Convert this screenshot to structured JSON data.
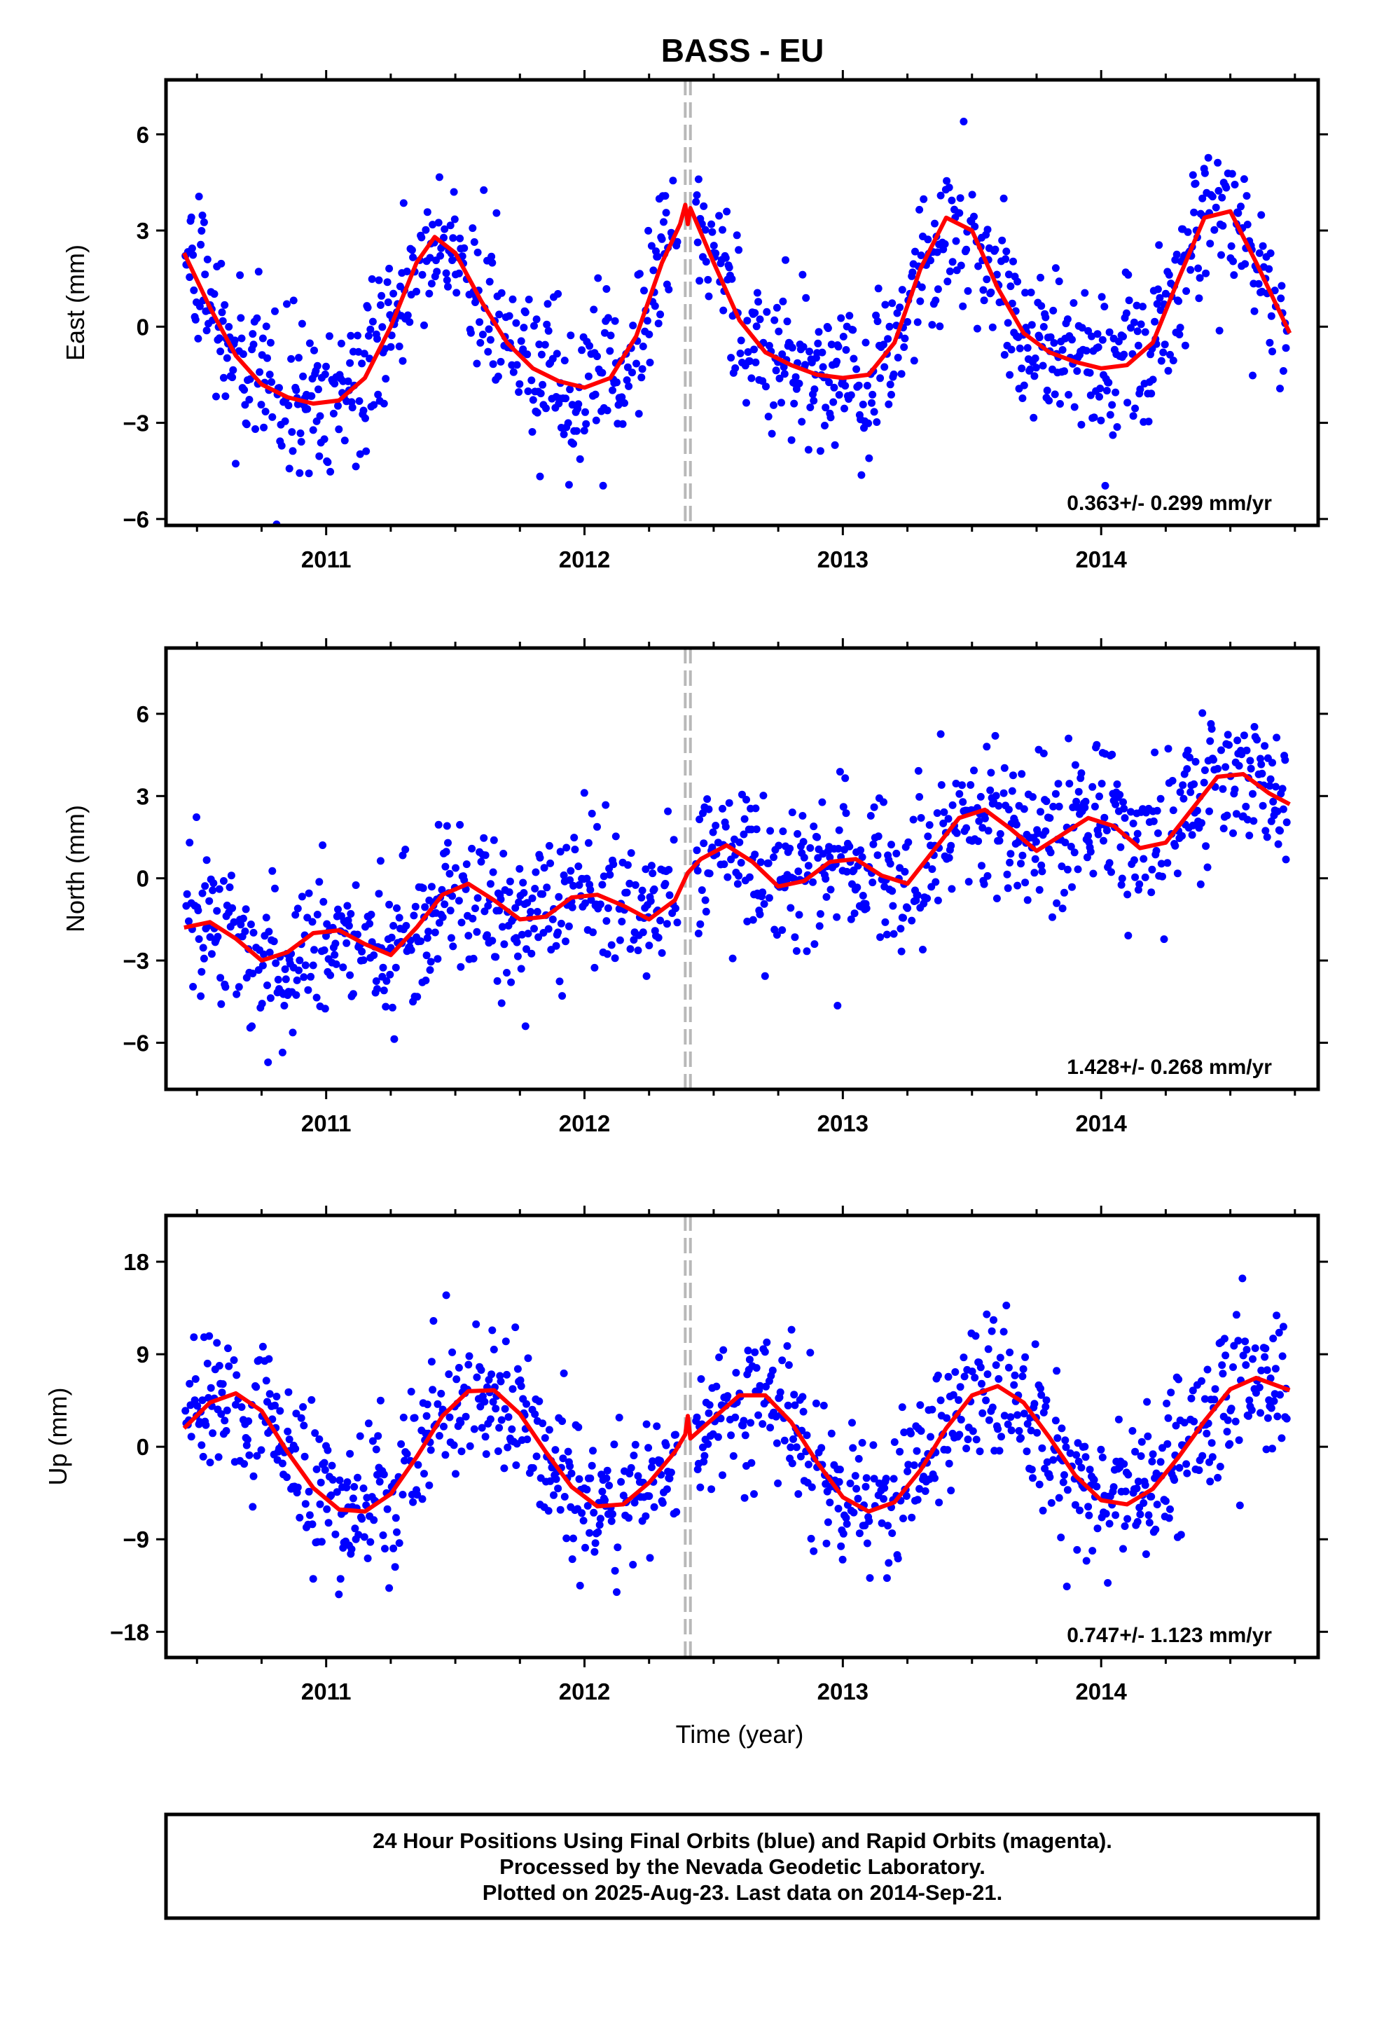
{
  "title": "BASS - EU",
  "xlabel": "Time (year)",
  "footer": {
    "line1": "24 Hour Positions Using Final Orbits (blue) and Rapid Orbits (magenta).",
    "line2": "Processed by the Nevada Geodetic Laboratory.",
    "line3": "Plotted on 2025-Aug-23. Last data on 2014-Sep-21."
  },
  "colors": {
    "points": "#0000ff",
    "model": "#ff0000",
    "event_line": "#b8b8b8",
    "frame": "#000000"
  },
  "chart_data": [
    {
      "type": "scatter",
      "ylabel": "East (mm)",
      "rate_text": "0.363+/- 0.299 mm/yr",
      "xlim": [
        2010.38,
        2014.84
      ],
      "ylim": [
        -6.2,
        7.7
      ],
      "yticks": [
        -6,
        -3,
        0,
        3,
        6
      ],
      "ytick_labels": [
        "−6",
        "−3",
        "0",
        "3",
        "6"
      ],
      "xticks": [
        2011,
        2012,
        2013,
        2014
      ],
      "xtick_labels": [
        "2011",
        "2012",
        "2013",
        "2014"
      ],
      "event_lines": [
        2012.39,
        2012.41
      ],
      "series": [
        {
          "kind": "model_curve",
          "x": [
            2010.45,
            2010.55,
            2010.65,
            2010.75,
            2010.85,
            2010.95,
            2011.05,
            2011.15,
            2011.25,
            2011.35,
            2011.42,
            2011.5,
            2011.6,
            2011.7,
            2011.8,
            2011.9,
            2012.0,
            2012.1,
            2012.2,
            2012.3,
            2012.37,
            2012.39,
            2012.4,
            2012.41,
            2012.5,
            2012.6,
            2012.7,
            2012.8,
            2012.9,
            2013.0,
            2013.1,
            2013.2,
            2013.3,
            2013.4,
            2013.5,
            2013.6,
            2013.7,
            2013.8,
            2013.9,
            2014.0,
            2014.1,
            2014.2,
            2014.3,
            2014.4,
            2014.5,
            2014.6,
            2014.73
          ],
          "y": [
            2.3,
            0.6,
            -0.9,
            -1.8,
            -2.2,
            -2.4,
            -2.3,
            -1.6,
            0.0,
            2.0,
            2.8,
            2.3,
            0.8,
            -0.5,
            -1.3,
            -1.7,
            -1.9,
            -1.6,
            -0.3,
            2.0,
            3.2,
            3.8,
            3.2,
            3.7,
            2.0,
            0.2,
            -0.8,
            -1.2,
            -1.5,
            -1.6,
            -1.5,
            -0.5,
            1.8,
            3.4,
            3.0,
            1.2,
            -0.2,
            -0.8,
            -1.1,
            -1.3,
            -1.2,
            -0.5,
            1.5,
            3.4,
            3.6,
            2.0,
            -0.2
          ]
        }
      ]
    },
    {
      "type": "scatter",
      "ylabel": "North (mm)",
      "rate_text": "1.428+/- 0.268 mm/yr",
      "xlim": [
        2010.38,
        2014.84
      ],
      "ylim": [
        -7.7,
        8.4
      ],
      "yticks": [
        -6,
        -3,
        0,
        3,
        6
      ],
      "ytick_labels": [
        "−6",
        "−3",
        "0",
        "3",
        "6"
      ],
      "xticks": [
        2011,
        2012,
        2013,
        2014
      ],
      "xtick_labels": [
        "2011",
        "2012",
        "2013",
        "2014"
      ],
      "event_lines": [
        2012.39,
        2012.41
      ],
      "series": [
        {
          "kind": "model_curve",
          "x": [
            2010.45,
            2010.55,
            2010.65,
            2010.75,
            2010.85,
            2010.95,
            2011.05,
            2011.15,
            2011.25,
            2011.35,
            2011.45,
            2011.55,
            2011.65,
            2011.75,
            2011.85,
            2011.95,
            2012.05,
            2012.15,
            2012.25,
            2012.35,
            2012.4,
            2012.45,
            2012.55,
            2012.65,
            2012.75,
            2012.85,
            2012.95,
            2013.05,
            2013.15,
            2013.25,
            2013.35,
            2013.45,
            2013.55,
            2013.65,
            2013.75,
            2013.85,
            2013.95,
            2014.05,
            2014.15,
            2014.25,
            2014.35,
            2014.45,
            2014.55,
            2014.65,
            2014.73
          ],
          "y": [
            -1.8,
            -1.6,
            -2.2,
            -3.0,
            -2.7,
            -2.0,
            -1.9,
            -2.4,
            -2.8,
            -1.8,
            -0.6,
            -0.2,
            -0.8,
            -1.5,
            -1.4,
            -0.7,
            -0.6,
            -1.0,
            -1.5,
            -0.8,
            0.2,
            0.7,
            1.2,
            0.6,
            -0.3,
            -0.1,
            0.6,
            0.7,
            0.1,
            -0.2,
            1.0,
            2.2,
            2.5,
            1.8,
            1.0,
            1.6,
            2.2,
            1.9,
            1.1,
            1.3,
            2.5,
            3.7,
            3.8,
            3.1,
            2.7
          ]
        }
      ]
    },
    {
      "type": "scatter",
      "ylabel": "Up (mm)",
      "rate_text": "0.747+/- 1.123 mm/yr",
      "xlim": [
        2010.38,
        2014.84
      ],
      "ylim": [
        -20.5,
        22.5
      ],
      "yticks": [
        -18,
        -9,
        0,
        9,
        18
      ],
      "ytick_labels": [
        "−18",
        "−9",
        "0",
        "9",
        "18"
      ],
      "xticks": [
        2011,
        2012,
        2013,
        2014
      ],
      "xtick_labels": [
        "2011",
        "2012",
        "2013",
        "2014"
      ],
      "event_lines": [
        2012.39,
        2012.41
      ],
      "series": [
        {
          "kind": "model_curve",
          "x": [
            2010.45,
            2010.55,
            2010.65,
            2010.75,
            2010.85,
            2010.95,
            2011.05,
            2011.15,
            2011.25,
            2011.35,
            2011.45,
            2011.55,
            2011.65,
            2011.75,
            2011.85,
            2011.95,
            2012.05,
            2012.15,
            2012.25,
            2012.35,
            2012.39,
            2012.4,
            2012.41,
            2012.5,
            2012.6,
            2012.7,
            2012.8,
            2012.9,
            2013.0,
            2013.1,
            2013.2,
            2013.3,
            2013.4,
            2013.5,
            2013.6,
            2013.7,
            2013.8,
            2013.9,
            2014.0,
            2014.1,
            2014.2,
            2014.3,
            2014.4,
            2014.5,
            2014.6,
            2014.73
          ],
          "y": [
            1.8,
            4.3,
            5.2,
            3.5,
            -0.5,
            -4.0,
            -6.1,
            -6.3,
            -4.6,
            -1.0,
            3.0,
            5.4,
            5.5,
            3.2,
            -0.5,
            -3.9,
            -5.8,
            -5.6,
            -3.5,
            -0.5,
            1.2,
            3.0,
            0.8,
            2.8,
            5.0,
            5.0,
            2.4,
            -1.5,
            -4.9,
            -6.3,
            -5.4,
            -2.3,
            1.8,
            5.0,
            5.9,
            4.3,
            0.9,
            -2.8,
            -5.2,
            -5.6,
            -4.1,
            -1.0,
            2.5,
            5.6,
            6.7,
            5.5
          ]
        }
      ]
    }
  ]
}
